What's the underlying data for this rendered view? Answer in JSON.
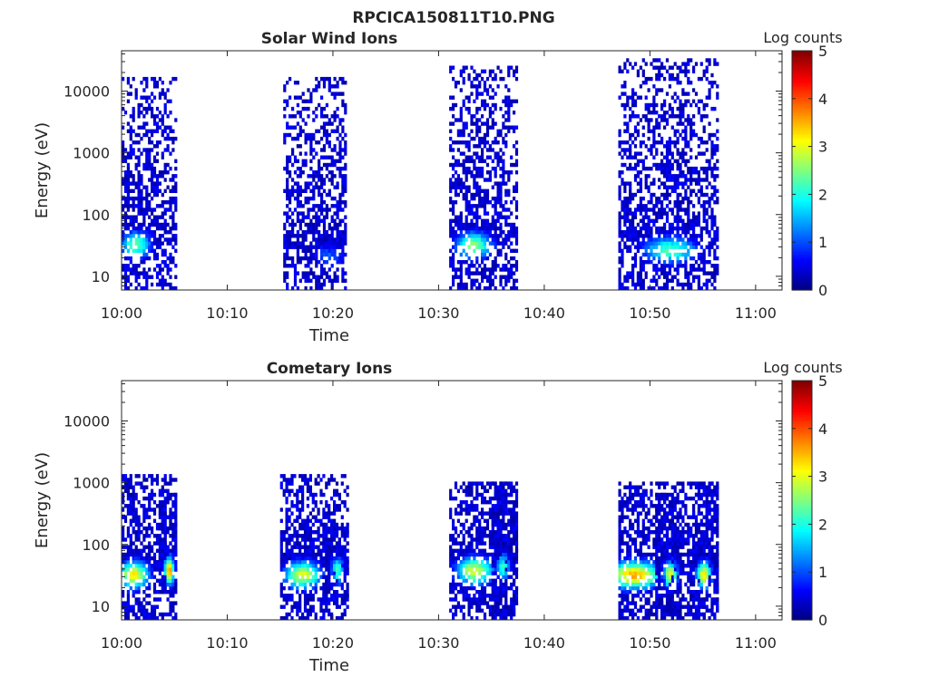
{
  "figure_title": "RPCICA150811T10.PNG",
  "colors": {
    "colormap": [
      "#00007f",
      "#0000ff",
      "#007fff",
      "#00ffff",
      "#7fff7f",
      "#ffff00",
      "#ff7f00",
      "#ff0000",
      "#7f0000"
    ]
  },
  "chart_data": [
    {
      "type": "heatmap",
      "title": "Solar Wind Ions",
      "xlabel": "Time",
      "ylabel": "Energy (eV)",
      "x_ticks": [
        "10:00",
        "10:10",
        "10:20",
        "10:30",
        "10:40",
        "10:50",
        "11:00"
      ],
      "xlim_minutes": [
        0,
        62.5
      ],
      "y_scale": "log",
      "y_ticks": [
        "10",
        "100",
        "1000",
        "10000"
      ],
      "ylim": [
        6,
        45000
      ],
      "colorbar": {
        "label": "Log counts",
        "ticks": [
          "0",
          "1",
          "2",
          "3",
          "4",
          "5"
        ],
        "range": [
          0,
          5
        ]
      },
      "clusters": [
        {
          "t_start": 0,
          "t_end": 5.2,
          "e_min": 6,
          "e_max": 15000,
          "peak_energy": 30,
          "peak_t": 1.2,
          "peak_level": 2.4
        },
        {
          "t_start": 15.3,
          "t_end": 21.3,
          "e_min": 6,
          "e_max": 15000,
          "peak_energy": 20,
          "peak_t": 19.5,
          "peak_level": 1.0
        },
        {
          "t_start": 31.0,
          "t_end": 37.3,
          "e_min": 6,
          "e_max": 25000,
          "peak_energy": 30,
          "peak_t": 33.2,
          "peak_level": 2.5
        },
        {
          "t_start": 47.0,
          "t_end": 56.5,
          "e_min": 6,
          "e_max": 30000,
          "peak_energy": 25,
          "peak_t": 51.8,
          "peak_level": 2.2
        }
      ]
    },
    {
      "type": "heatmap",
      "title": "Cometary Ions",
      "xlabel": "Time",
      "ylabel": "Energy (eV)",
      "x_ticks": [
        "10:00",
        "10:10",
        "10:20",
        "10:30",
        "10:40",
        "10:50",
        "11:00"
      ],
      "xlim_minutes": [
        0,
        62.5
      ],
      "y_scale": "log",
      "y_ticks": [
        "10",
        "100",
        "1000",
        "10000"
      ],
      "ylim": [
        6,
        45000
      ],
      "colorbar": {
        "label": "Log counts",
        "ticks": [
          "0",
          "1",
          "2",
          "3",
          "4",
          "5"
        ],
        "range": [
          0,
          5
        ]
      },
      "clusters": [
        {
          "t_start": 0,
          "t_end": 5.2,
          "e_min": 6,
          "e_max": 1200,
          "peak_energy": 30,
          "peak_t": 1.0,
          "peak_level": 3.2
        },
        {
          "t_start": 3.5,
          "t_end": 5.2,
          "e_min": 15,
          "e_max": 600,
          "peak_energy": 35,
          "peak_t": 4.4,
          "peak_level": 3.7
        },
        {
          "t_start": 15.0,
          "t_end": 21.3,
          "e_min": 6,
          "e_max": 1200,
          "peak_energy": 30,
          "peak_t": 17.0,
          "peak_level": 3.0
        },
        {
          "t_start": 19.0,
          "t_end": 21.3,
          "e_min": 10,
          "e_max": 200,
          "peak_energy": 35,
          "peak_t": 20.3,
          "peak_level": 2.2
        },
        {
          "t_start": 31.0,
          "t_end": 37.3,
          "e_min": 6,
          "e_max": 1000,
          "peak_energy": 35,
          "peak_t": 33.3,
          "peak_level": 3.0
        },
        {
          "t_start": 35.0,
          "t_end": 37.3,
          "e_min": 6,
          "e_max": 1000,
          "peak_energy": 40,
          "peak_t": 36.0,
          "peak_level": 2.2
        },
        {
          "t_start": 47.0,
          "t_end": 56.5,
          "e_min": 6,
          "e_max": 1000,
          "peak_energy": 30,
          "peak_t": 48.4,
          "peak_level": 3.5
        },
        {
          "t_start": 50.5,
          "t_end": 53.0,
          "e_min": 6,
          "e_max": 600,
          "peak_energy": 30,
          "peak_t": 51.8,
          "peak_level": 3.0
        },
        {
          "t_start": 54.0,
          "t_end": 56.5,
          "e_min": 6,
          "e_max": 1000,
          "peak_energy": 30,
          "peak_t": 55.0,
          "peak_level": 3.3
        }
      ]
    }
  ]
}
